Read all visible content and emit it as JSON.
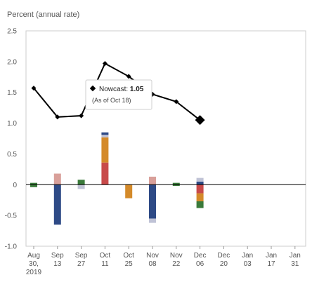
{
  "chart_data": {
    "type": "bar",
    "ylabel": "Percent (annual rate)",
    "ylim": [
      -1.0,
      2.5
    ],
    "yticks": [
      "2.5",
      "2.0",
      "1.5",
      "1.0",
      "0.5",
      "0",
      "-0.5",
      "-1.0"
    ],
    "ytick_values": [
      2.5,
      2.0,
      1.5,
      1.0,
      0.5,
      0,
      -0.5,
      -1.0
    ],
    "xticks": [
      {
        "lines": [
          "Aug",
          "30,",
          "2019"
        ]
      },
      {
        "lines": [
          "Sep",
          "13"
        ]
      },
      {
        "lines": [
          "Sep",
          "27"
        ]
      },
      {
        "lines": [
          "Oct",
          "11"
        ]
      },
      {
        "lines": [
          "Oct",
          "25"
        ]
      },
      {
        "lines": [
          "Nov",
          "08"
        ]
      },
      {
        "lines": [
          "Nov",
          "22"
        ]
      },
      {
        "lines": [
          "Dec",
          "06"
        ]
      },
      {
        "lines": [
          "Dec",
          "20"
        ]
      },
      {
        "lines": [
          "Jan",
          "03"
        ]
      },
      {
        "lines": [
          "Jan",
          "17"
        ]
      },
      {
        "lines": [
          "Jan",
          "31"
        ]
      }
    ],
    "line": {
      "points": [
        {
          "x": 0,
          "y": 1.57
        },
        {
          "x": 1,
          "y": 1.1
        },
        {
          "x": 2,
          "y": 1.12
        },
        {
          "x": 3,
          "y": 1.97
        },
        {
          "x": 4,
          "y": 1.76
        },
        {
          "x": 5,
          "y": 1.47
        },
        {
          "x": 6,
          "y": 1.35
        },
        {
          "x": 7,
          "y": 1.05
        }
      ],
      "latest": {
        "x": 7,
        "y": 1.05
      }
    },
    "bars": [
      {
        "x": 0,
        "segments": [
          {
            "color": "#3a7a3a",
            "value": 0.03
          },
          {
            "color": "#3a7a3a",
            "value": -0.04
          }
        ]
      },
      {
        "x": 1,
        "segments": [
          {
            "color": "#d9a09a",
            "value": 0.18
          },
          {
            "color": "#2e4a86",
            "value": -0.65
          }
        ]
      },
      {
        "x": 2,
        "segments": [
          {
            "color": "#3a7a3a",
            "value": 0.08
          },
          {
            "color": "#c0c3d6",
            "value": -0.07
          }
        ]
      },
      {
        "x": 3,
        "segments": [
          {
            "color": "#c84a4a",
            "value": 0.36
          },
          {
            "color": "#d48a2a",
            "value": 0.41
          },
          {
            "color": "#c0c3d6",
            "value": 0.04
          },
          {
            "color": "#2e4a86",
            "value": 0.04
          }
        ]
      },
      {
        "x": 4,
        "segments": [
          {
            "color": "#d48a2a",
            "value": -0.22
          },
          {
            "color": "#e8c89a",
            "value": 0.01
          }
        ]
      },
      {
        "x": 5,
        "segments": [
          {
            "color": "#d9a09a",
            "value": 0.13
          },
          {
            "color": "#2e4a86",
            "value": -0.55
          },
          {
            "color": "#c0c3d6",
            "value": -0.07
          }
        ]
      },
      {
        "x": 6,
        "segments": [
          {
            "color": "#3a7a3a",
            "value": 0.03
          },
          {
            "color": "#3a7a3a",
            "value": -0.02
          }
        ]
      },
      {
        "x": 7,
        "segments": [
          {
            "color": "#2e4a86",
            "value": 0.05
          },
          {
            "color": "#c0c3d6",
            "value": 0.06
          },
          {
            "color": "#c84a4a",
            "value": -0.14
          },
          {
            "color": "#d48a2a",
            "value": -0.13
          },
          {
            "color": "#3a7a3a",
            "value": -0.11
          }
        ]
      }
    ],
    "tooltip": {
      "label": "Nowcast: ",
      "value": "1.05",
      "subtitle": "(As of Oct 18)"
    },
    "colors": {
      "line": "#000000",
      "axis": "#000000",
      "frame": "#cccccc"
    }
  }
}
